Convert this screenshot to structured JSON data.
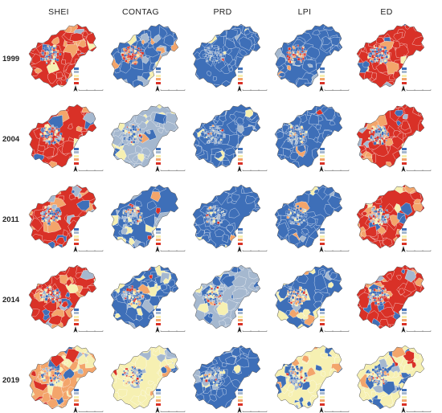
{
  "columns": [
    "SHEI",
    "CONTAG",
    "PRD",
    "LPI",
    "ED"
  ],
  "rows": [
    "1999",
    "2004",
    "2011",
    "2014",
    "2019"
  ],
  "palette": {
    "class1": "#3e6fb8",
    "class2": "#a5b8cf",
    "class3": "#f6f0b2",
    "class4": "#f3a56b",
    "class5": "#d93127"
  },
  "maps": [
    [
      "red-dominant",
      "blue-center-red-ring",
      "blue-dominant",
      "blue-dominant-red-core",
      "red-dominant"
    ],
    [
      "red-dominant",
      "grey-dominant",
      "blue-dominant",
      "blue-dominant",
      "red-dominant"
    ],
    [
      "red-dominant",
      "blue-grey-mix",
      "blue-dominant",
      "blue-dominant",
      "red-orange-mix"
    ],
    [
      "red-orange-mix",
      "blue-grey-mix",
      "grey-blue-mix",
      "blue-yellow-mix",
      "red-dominant"
    ],
    [
      "orange-mix",
      "yellow-dominant",
      "blue-dominant",
      "yellow-blue-mix",
      "yellow-blue-mix"
    ]
  ]
}
